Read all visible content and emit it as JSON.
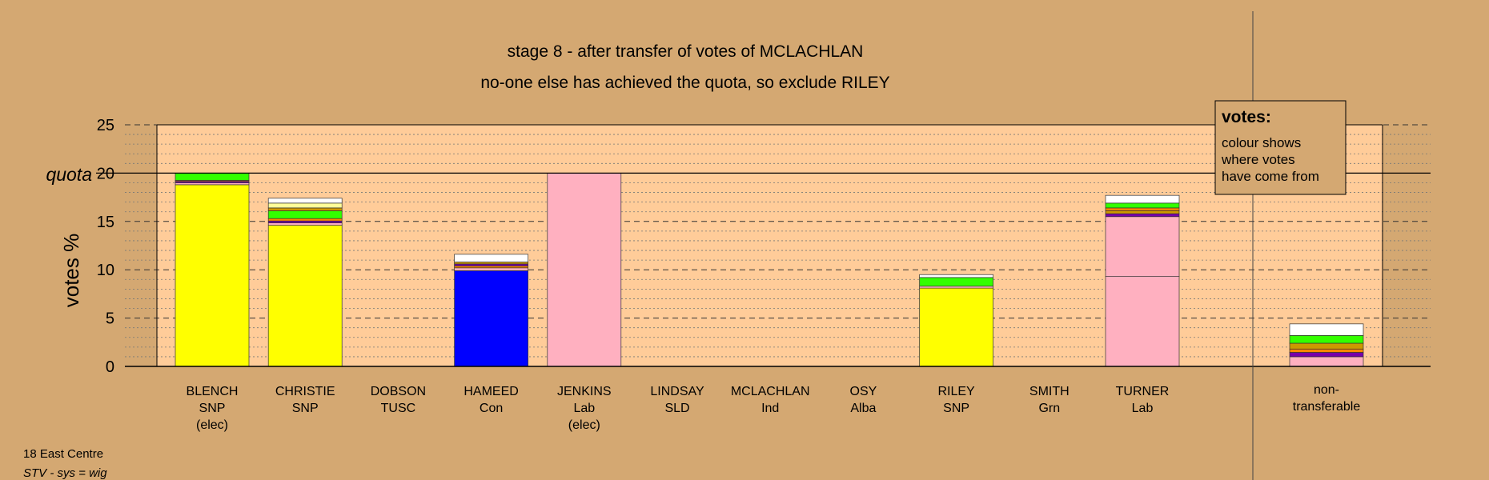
{
  "chart_data": {
    "type": "bar",
    "title": "stage 8 - after transfer of votes of MCLACHLAN",
    "subtitle": "no-one else has achieved the quota, so exclude RILEY",
    "ylabel": "votes %",
    "ylim": [
      0,
      25
    ],
    "yticks": [
      0,
      5,
      10,
      15,
      20,
      25
    ],
    "quota": {
      "label": "quota",
      "value": 20
    },
    "grid": true,
    "colors": {
      "plot_bg": "#ffcc99",
      "page_bg": "#d4a872",
      "snp": "#ffff00",
      "con": "#0000ff",
      "lab": "#ffb0c0",
      "grn": "#33ff00",
      "alba": "#7700aa",
      "other": "#ff8800",
      "tusc": "#cc9900",
      "ind": "#ffffff"
    },
    "candidates": [
      {
        "name": "BLENCH",
        "party": "SNP",
        "note": "(elec)",
        "segments": [
          {
            "value": 18.8,
            "color": "#ffff00"
          },
          {
            "value": 0.2,
            "color": "#ffb0c0"
          },
          {
            "value": 0.15,
            "color": "#7700aa"
          },
          {
            "value": 0.1,
            "color": "#ff8800"
          },
          {
            "value": 0.75,
            "color": "#33ff00"
          }
        ]
      },
      {
        "name": "CHRISTIE",
        "party": "SNP",
        "note": "",
        "segments": [
          {
            "value": 14.6,
            "color": "#ffff00"
          },
          {
            "value": 0.25,
            "color": "#ffb0c0"
          },
          {
            "value": 0.2,
            "color": "#7700aa"
          },
          {
            "value": 0.25,
            "color": "#ff8800"
          },
          {
            "value": 0.8,
            "color": "#33ff00"
          },
          {
            "value": 0.3,
            "color": "#cc9900"
          },
          {
            "value": 0.5,
            "color": "#ffff99"
          },
          {
            "value": 0.5,
            "color": "#ffffff"
          }
        ]
      },
      {
        "name": "DOBSON",
        "party": "TUSC",
        "note": "",
        "segments": []
      },
      {
        "name": "HAMEED",
        "party": "Con",
        "note": "",
        "segments": [
          {
            "value": 9.9,
            "color": "#0000ff"
          },
          {
            "value": 0.3,
            "color": "#ffb0c0"
          },
          {
            "value": 0.2,
            "color": "#ff8800"
          },
          {
            "value": 0.2,
            "color": "#7700aa"
          },
          {
            "value": 0.2,
            "color": "#cc9900"
          },
          {
            "value": 0.8,
            "color": "#ffffff"
          }
        ]
      },
      {
        "name": "JENKINS",
        "party": "Lab",
        "note": "(elec)",
        "segments": [
          {
            "value": 20.0,
            "color": "#ffb0c0"
          }
        ]
      },
      {
        "name": "LINDSAY",
        "party": "SLD",
        "note": "",
        "segments": []
      },
      {
        "name": "MCLACHLAN",
        "party": "Ind",
        "note": "",
        "segments": []
      },
      {
        "name": "OSY",
        "party": "Alba",
        "note": "",
        "segments": []
      },
      {
        "name": "RILEY",
        "party": "SNP",
        "note": "",
        "segments": [
          {
            "value": 8.1,
            "color": "#ffff00"
          },
          {
            "value": 0.2,
            "color": "#ffb0c0"
          },
          {
            "value": 0.9,
            "color": "#33ff00"
          },
          {
            "value": 0.3,
            "color": "#ffffff"
          }
        ]
      },
      {
        "name": "SMITH",
        "party": "Grn",
        "note": "",
        "segments": []
      },
      {
        "name": "TURNER",
        "party": "Lab",
        "note": "",
        "segments": [
          {
            "value": 9.3,
            "color": "#ffb0c0"
          },
          {
            "value": 6.2,
            "color": "#ffb0c0"
          },
          {
            "value": 0.3,
            "color": "#7700aa"
          },
          {
            "value": 0.3,
            "color": "#cc9900"
          },
          {
            "value": 0.3,
            "color": "#ff8800"
          },
          {
            "value": 0.5,
            "color": "#33ff00"
          },
          {
            "value": 0.8,
            "color": "#ffffff"
          }
        ]
      }
    ],
    "nontransferable": {
      "label_line1": "non-",
      "label_line2": "transferable",
      "segments": [
        {
          "value": 1.0,
          "color": "#ffb0c0"
        },
        {
          "value": 0.45,
          "color": "#7700aa"
        },
        {
          "value": 0.35,
          "color": "#ff8800"
        },
        {
          "value": 0.6,
          "color": "#cc9900"
        },
        {
          "value": 0.8,
          "color": "#33ff00"
        },
        {
          "value": 1.2,
          "color": "#ffffff"
        }
      ]
    }
  },
  "legend": {
    "heading": "votes:",
    "lines": [
      "colour shows",
      "where votes",
      "have come from"
    ]
  },
  "footer": {
    "ward": "18 East Centre",
    "system": "STV - sys = wig"
  }
}
